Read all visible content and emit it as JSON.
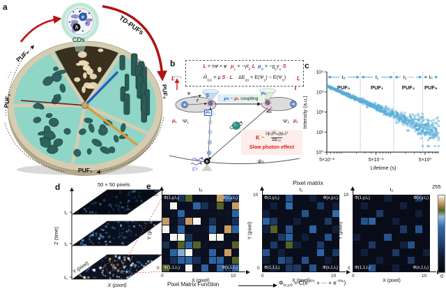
{
  "panels": {
    "a": {
      "label": "a",
      "cds_label": "CDs",
      "electron_label": "e",
      "hole_label": "h",
      "td_pufs_label": "TD-PUFs",
      "puf_n": "PUFₙ",
      "puf_2": "PUF₂",
      "puf_1": "PUF₁",
      "puf_0": "PUF₀",
      "ellipsis": "···"
    },
    "b": {
      "label": "b",
      "eq_line1": [
        {
          "t": "L",
          "c": "red-b"
        },
        {
          "t": " = m",
          "c": "k"
        },
        {
          "t": "r",
          "c": "k-b-i"
        },
        {
          "t": " × ",
          "c": "k"
        },
        {
          "t": "v",
          "c": "k-b-i"
        },
        {
          "t": "   ",
          "c": "k"
        },
        {
          "t": "μ",
          "c": "red-b-i"
        },
        {
          "t": "L",
          "c": "red-sub"
        },
        {
          "t": " = −γℓ",
          "c": "k"
        },
        {
          "t": "e",
          "c": "k-sub"
        },
        {
          "t": "·",
          "c": "k"
        },
        {
          "t": "L",
          "c": "red-b"
        },
        {
          "t": "  ",
          "c": "k"
        },
        {
          "t": "μ",
          "c": "blue-b-i"
        },
        {
          "t": "S",
          "c": "blue-sub"
        },
        {
          "t": " = −g",
          "c": "k"
        },
        {
          "t": "e",
          "c": "k-sub"
        },
        {
          "t": "γ",
          "c": "k-i"
        },
        {
          "t": "e",
          "c": "k-sub"
        },
        {
          "t": "·",
          "c": "k"
        },
        {
          "t": "S",
          "c": "red-b"
        }
      ],
      "eq_line2": [
        {
          "t": "Ĥ",
          "c": "k-i"
        },
        {
          "t": "SO",
          "c": "k-sub"
        },
        {
          "t": " = μ ",
          "c": "k"
        },
        {
          "t": "S",
          "c": "red-b"
        },
        {
          "t": " · ",
          "c": "k"
        },
        {
          "t": "L",
          "c": "red-b"
        },
        {
          "t": "    ΔE",
          "c": "k"
        },
        {
          "t": "20",
          "c": "k-sub"
        },
        {
          "t": " = E(Ψ",
          "c": "k"
        },
        {
          "t": "2",
          "c": "k-sub"
        },
        {
          "t": ") − E(Ψ",
          "c": "k"
        },
        {
          "t": "0",
          "c": "k-sub"
        },
        {
          "t": ")",
          "c": "k"
        }
      ],
      "coupling": [
        {
          "t": "μ",
          "c": "blue-b-i"
        },
        {
          "t": "S",
          "c": "blue-sub"
        },
        {
          "t": " − ",
          "c": "k"
        },
        {
          "t": "μ",
          "c": "red-b-i"
        },
        {
          "t": "L",
          "c": "red-sub"
        },
        {
          "t": " coupling",
          "c": "k"
        }
      ],
      "L": "L",
      "S": "S",
      "v": "v",
      "r": "r",
      "plus": "+",
      "mu_s": [
        {
          "t": "μ",
          "c": "blue-b-i"
        },
        {
          "t": "S",
          "c": "blue-sub"
        }
      ],
      "mu_l": [
        {
          "t": "μ",
          "c": "red-b-i"
        },
        {
          "t": "L",
          "c": "red-sub"
        }
      ],
      "psi1": "Ψ₁",
      "psi2": "Ψ₂",
      "psi0": "ψ₀",
      "k": "K",
      "k_rel": "~",
      "k_num": "⟨ψ₂|Ĥₛₒ|ψ₀⟩²",
      "k_den": "ΔE₂₀",
      "slow_effect": "Slow photon effect",
      "ex": "Ex",
      "h": "h"
    },
    "c": {
      "label": "c"
    },
    "d": {
      "label": "d",
      "size_note": "50 × 50 pixels",
      "z_label": "Z (time)",
      "x_label": "X (pixel)",
      "y_label": "Y (pixel)",
      "tick_labels": [
        "t₀",
        "t₁",
        "t₂"
      ],
      "planes": [
        {
          "tick": "t₀",
          "bg": "#0c1322",
          "speckle_count": 95,
          "speckle_colors": [
            "#f2f4f1",
            "#a9c8e8",
            "#3d72ad",
            "#c9a36a",
            "#62703c",
            "#24406b"
          ]
        },
        {
          "tick": "t₁",
          "bg": "#0a101d",
          "speckle_count": 85,
          "speckle_colors": [
            "#2d5c99",
            "#1c3a66",
            "#3d72ad",
            "#16294a",
            "#6f98c4"
          ]
        },
        {
          "tick": "t₂",
          "bg": "#070b14",
          "speckle_count": 65,
          "speckle_colors": [
            "#1c3a66",
            "#16294a",
            "#2d5c99"
          ]
        }
      ]
    },
    "e": {
      "label": "e",
      "heading": "Pixel matrix",
      "colorbar_max": "255",
      "colorbar_min": "0",
      "function_label": "Pixel Matrix Function",
      "formula": {
        "phi": "Φ",
        "sub": "(x,y,t)",
        "eq": " = C(e",
        "exp1": "−t/τ₁",
        "mid": " + ⋯ + e",
        "exp2": "−t/τₚ",
        "close": ")"
      },
      "matrices": [
        {
          "title": "t₀",
          "corner_tl": "Φ(1,y,t₀)",
          "corner_tr": "Φ(x,y,t₀)",
          "corner_bl": "Φ(1,1,t₀)",
          "corner_br": "Φ(x,1,t₀)",
          "y_max": "10",
          "y_min": "0",
          "x_min": "0",
          "x_max": "10",
          "x_label": "X (pixel)",
          "y_label": "Y (pixel)"
        },
        {
          "title": "t₁",
          "corner_tl": "Φ(1,y,t₁)",
          "corner_tr": "Φ(x,y,t₁)",
          "corner_bl": "Φ(1,1,t₁)",
          "corner_br": "Φ(x,1,t₁)",
          "y_max": "10",
          "y_min": "0",
          "x_min": "0",
          "x_max": "10",
          "x_label": "X (pixel)",
          "y_label": "Y (pixel)"
        },
        {
          "title": "t₂",
          "corner_tl": "Φ(1,y,t₂)",
          "corner_tr": "Φ(x,y,t₂)",
          "corner_bl": "Φ(1,1,t₂)",
          "corner_br": "Φ(x,1,t₂)",
          "y_max": "10",
          "y_min": "0",
          "x_min": "0",
          "x_max": "10",
          "x_label": "X (pixel)",
          "y_label": "Y (pixel)"
        }
      ]
    }
  },
  "chart_data": [
    {
      "id": "decay-scatter",
      "type": "scatter",
      "xlabel": "Lifetime (s)",
      "ylabel": "Intensity (a.u.)",
      "xscale": "log",
      "yscale": "log",
      "xlim": [
        0.05,
        9.5
      ],
      "ylim": [
        1,
        10000
      ],
      "grid": false,
      "x_ticks": [
        {
          "value": 0.05,
          "label": "5×10⁻²"
        },
        {
          "value": 0.5,
          "label": "5×10⁻¹"
        },
        {
          "value": 5,
          "label": "5×10⁰"
        }
      ],
      "y_ticks": [
        {
          "value": 1,
          "label": "10⁰"
        },
        {
          "value": 10,
          "label": "10¹"
        },
        {
          "value": 100,
          "label": "10²"
        },
        {
          "value": 1000,
          "label": "10³"
        },
        {
          "value": 10000,
          "label": "10⁴"
        }
      ],
      "regions": [
        {
          "time_label": "t₀",
          "puf_label": "PUF₀",
          "from": 0.05,
          "to": 0.24
        },
        {
          "time_label": "t₁",
          "puf_label": "PUF₁",
          "from": 0.24,
          "to": 1.15
        },
        {
          "time_label": "t₂ ⋯",
          "puf_label": "PUF₂",
          "from": 1.15,
          "to": 4.5
        },
        {
          "time_label": "tₙ",
          "puf_label": "PUFₙ",
          "from": 4.5,
          "to": 9.5
        }
      ],
      "trend": {
        "model": "power_law",
        "amplitude": 85,
        "exponent": -1.05,
        "noise_sigma_log_range": [
          0.03,
          0.33
        ],
        "n_points": 660,
        "marker": "open-circle",
        "color": "#58acd8"
      }
    },
    {
      "id": "pixel-matrix-t0",
      "type": "heatmap",
      "title": "t₀",
      "scale": [
        0,
        255
      ],
      "values": [
        [
          25,
          25,
          80,
          205,
          25,
          30,
          25,
          230,
          140,
          80
        ],
        [
          30,
          255,
          25,
          25,
          140,
          80,
          30,
          205,
          25,
          230
        ],
        [
          25,
          30,
          140,
          30,
          25,
          25,
          25,
          30,
          30,
          140
        ],
        [
          230,
          25,
          80,
          230,
          255,
          25,
          80,
          25,
          30,
          80
        ],
        [
          255,
          30,
          140,
          25,
          30,
          30,
          140,
          25,
          230,
          140
        ],
        [
          30,
          255,
          255,
          80,
          25,
          25,
          255,
          255,
          25,
          25
        ],
        [
          80,
          25,
          205,
          140,
          205,
          30,
          25,
          30,
          25,
          205
        ],
        [
          25,
          140,
          180,
          255,
          30,
          25,
          140,
          25,
          230,
          25
        ],
        [
          25,
          80,
          140,
          140,
          80,
          25,
          140,
          140,
          30,
          205
        ],
        [
          205,
          25,
          30,
          255,
          25,
          140,
          25,
          140,
          80,
          140
        ]
      ]
    },
    {
      "id": "pixel-matrix-t1",
      "type": "heatmap",
      "title": "t₁",
      "scale": [
        0,
        255
      ],
      "values": [
        [
          20,
          20,
          20,
          120,
          20,
          20,
          60,
          20,
          20,
          20
        ],
        [
          20,
          60,
          20,
          150,
          20,
          20,
          20,
          90,
          20,
          60
        ],
        [
          60,
          20,
          20,
          20,
          20,
          120,
          20,
          20,
          20,
          150
        ],
        [
          140,
          90,
          20,
          20,
          60,
          20,
          20,
          20,
          90,
          20
        ],
        [
          60,
          205,
          20,
          120,
          20,
          20,
          140,
          20,
          20,
          60
        ],
        [
          20,
          20,
          90,
          140,
          20,
          60,
          20,
          20,
          120,
          20
        ],
        [
          20,
          90,
          20,
          205,
          60,
          20,
          20,
          90,
          20,
          20
        ],
        [
          120,
          20,
          60,
          20,
          20,
          20,
          20,
          140,
          20,
          90
        ],
        [
          60,
          20,
          120,
          90,
          20,
          120,
          20,
          20,
          60,
          20
        ],
        [
          20,
          60,
          20,
          90,
          90,
          20,
          120,
          20,
          20,
          20
        ]
      ]
    },
    {
      "id": "pixel-matrix-t2",
      "type": "heatmap",
      "title": "t₂",
      "scale": [
        0,
        255
      ],
      "values": [
        [
          15,
          15,
          15,
          15,
          60,
          15,
          15,
          15,
          90,
          15
        ],
        [
          15,
          60,
          15,
          15,
          15,
          15,
          60,
          15,
          15,
          15
        ],
        [
          15,
          15,
          15,
          90,
          15,
          15,
          15,
          15,
          60,
          15
        ],
        [
          15,
          120,
          140,
          15,
          15,
          60,
          15,
          15,
          15,
          15
        ],
        [
          15,
          15,
          15,
          15,
          15,
          15,
          90,
          15,
          120,
          15
        ],
        [
          60,
          15,
          15,
          15,
          120,
          15,
          15,
          15,
          15,
          15
        ],
        [
          15,
          15,
          90,
          15,
          15,
          15,
          60,
          120,
          15,
          15
        ],
        [
          15,
          60,
          15,
          15,
          15,
          90,
          15,
          15,
          15,
          60
        ],
        [
          15,
          15,
          15,
          60,
          15,
          15,
          15,
          90,
          15,
          15
        ],
        [
          15,
          15,
          120,
          15,
          15,
          60,
          15,
          15,
          15,
          15
        ]
      ]
    }
  ],
  "colors": {
    "accent_red": "#b01314",
    "disk_teal": "#8fd6c7",
    "rock": "#30615c",
    "rim_tan": "#d6ccb1",
    "sector_brown": "#39301e",
    "cream": "#ecdcba",
    "scatter_blue": "#58acd8",
    "region_arrow_blue": "#2e96d0",
    "dashed_red": "#e04848",
    "purple": "#7a52cc",
    "slow_red": "#e02020",
    "heat_stops": [
      [
        0,
        "#04060d"
      ],
      [
        60,
        "#131f3a"
      ],
      [
        110,
        "#234a80"
      ],
      [
        150,
        "#2f6bad"
      ],
      [
        185,
        "#93b9dc"
      ],
      [
        205,
        "#566128"
      ],
      [
        230,
        "#c79b63"
      ],
      [
        255,
        "#f7f7f2"
      ]
    ]
  }
}
